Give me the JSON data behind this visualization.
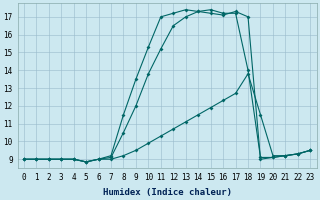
{
  "xlabel": "Humidex (Indice chaleur)",
  "bg_color": "#cce8f0",
  "grid_color": "#99bbcc",
  "line_color": "#006666",
  "xlim": [
    -0.5,
    23.5
  ],
  "ylim": [
    8.5,
    17.75
  ],
  "yticks": [
    9,
    10,
    11,
    12,
    13,
    14,
    15,
    16,
    17
  ],
  "xticks": [
    0,
    1,
    2,
    3,
    4,
    5,
    6,
    7,
    8,
    9,
    10,
    11,
    12,
    13,
    14,
    15,
    16,
    17,
    18,
    19,
    20,
    21,
    22,
    23
  ],
  "line1_x": [
    0,
    1,
    2,
    3,
    4,
    5,
    6,
    7,
    8,
    9,
    10,
    11,
    12,
    13,
    14,
    15,
    16,
    17,
    18,
    19,
    20,
    21,
    22,
    23
  ],
  "line1_y": [
    9.0,
    9.0,
    9.0,
    9.0,
    9.0,
    8.85,
    9.0,
    9.0,
    9.2,
    9.5,
    9.9,
    10.3,
    10.7,
    11.1,
    11.5,
    11.9,
    12.3,
    12.7,
    13.8,
    11.5,
    9.2,
    9.2,
    9.3,
    9.5
  ],
  "line2_x": [
    0,
    1,
    2,
    3,
    4,
    5,
    6,
    7,
    8,
    9,
    10,
    11,
    12,
    13,
    14,
    15,
    16,
    17,
    18,
    19,
    20,
    21,
    22,
    23
  ],
  "line2_y": [
    9.0,
    9.0,
    9.0,
    9.0,
    9.0,
    8.85,
    9.0,
    9.2,
    11.5,
    13.5,
    15.3,
    17.0,
    17.2,
    17.4,
    17.3,
    17.2,
    17.1,
    17.3,
    17.0,
    9.0,
    9.1,
    9.2,
    9.3,
    9.5
  ],
  "line3_x": [
    0,
    1,
    2,
    3,
    4,
    5,
    6,
    7,
    8,
    9,
    10,
    11,
    12,
    13,
    14,
    15,
    16,
    17,
    18,
    19,
    20,
    21,
    22,
    23
  ],
  "line3_y": [
    9.0,
    9.0,
    9.0,
    9.0,
    9.0,
    8.85,
    9.0,
    9.1,
    10.5,
    12.0,
    13.8,
    15.2,
    16.5,
    17.0,
    17.3,
    17.4,
    17.2,
    17.2,
    14.0,
    9.1,
    9.1,
    9.2,
    9.3,
    9.5
  ]
}
